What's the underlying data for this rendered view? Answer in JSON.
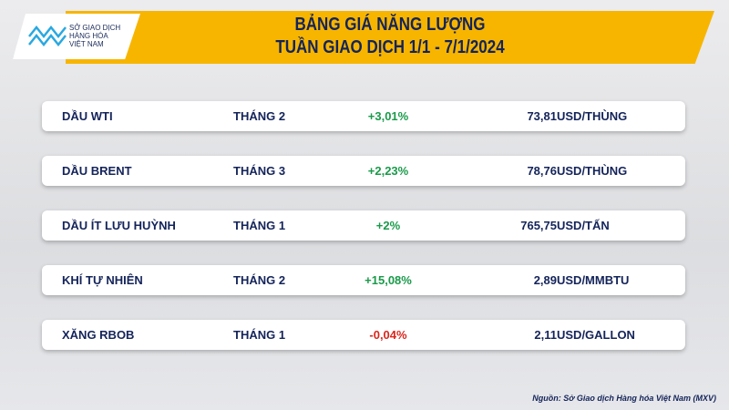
{
  "logo": {
    "line1": "SỞ GIAO DỊCH",
    "line2": "HÀNG HÓA",
    "line3": "VIỆT NAM"
  },
  "title": {
    "line1": "BẢNG GIÁ NĂNG LƯỢNG",
    "line2": "TUẦN GIAO DỊCH 1/1 - 7/1/2024"
  },
  "colors": {
    "up": "#1a9a4a",
    "down": "#d9261c",
    "banner": "#f7b500",
    "text": "#14245a"
  },
  "rows": [
    {
      "name": "DẦU WTI",
      "month": "THÁNG 2",
      "change": "+3,01%",
      "price": "73,81",
      "unit": "USD/THÙNG",
      "dir": "up"
    },
    {
      "name": "DẦU BRENT",
      "month": "THÁNG 3",
      "change": "+2,23%",
      "price": "78,76",
      "unit": "USD/THÙNG",
      "dir": "up"
    },
    {
      "name": "DẦU ÍT LƯU HUỲNH",
      "month": "THÁNG 1",
      "change": "+2%",
      "price": "765,75",
      "unit": "USD/TẤN",
      "dir": "up"
    },
    {
      "name": "KHÍ TỰ NHIÊN",
      "month": "THÁNG 2",
      "change": "+15,08%",
      "price": "2,89",
      "unit": "USD/MMBTU",
      "dir": "up"
    },
    {
      "name": "XĂNG RBOB",
      "month": "THÁNG 1",
      "change": "-0,04%",
      "price": "2,11",
      "unit": "USD/GALLON",
      "dir": "down"
    }
  ],
  "source": "Nguồn: Sở Giao dịch Hàng hóa Việt Nam (MXV)"
}
